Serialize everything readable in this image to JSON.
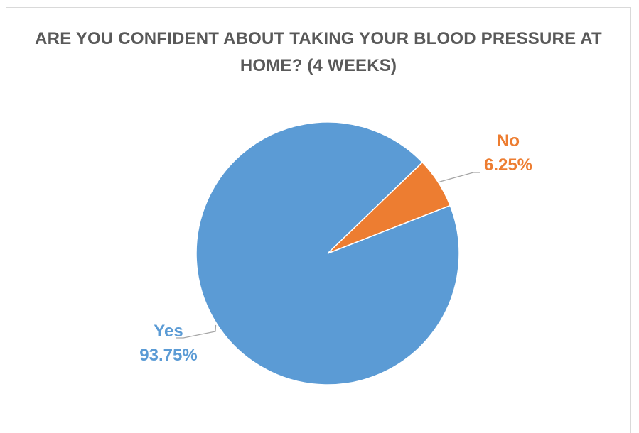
{
  "chart_data": {
    "type": "pie",
    "title": "ARE YOU CONFIDENT ABOUT TAKING YOUR BLOOD PRESSURE AT HOME? (4 WEEKS)",
    "categories": [
      "Yes",
      "No"
    ],
    "values": [
      93.75,
      6.25
    ],
    "value_labels": [
      "93.75%",
      "6.25%"
    ],
    "colors": [
      "#5B9BD5",
      "#ED7D31"
    ],
    "legend": "none",
    "data_labels": "category name and percentage, outside with leader lines"
  },
  "colors": {
    "title": "#595959",
    "leader_line": "#a6a6a6",
    "frame": "#d9d9d9"
  }
}
